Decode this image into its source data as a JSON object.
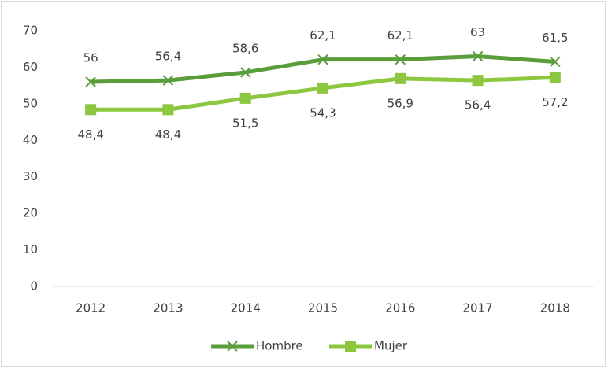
{
  "chart_data": {
    "type": "line",
    "categories": [
      "2012",
      "2013",
      "2014",
      "2015",
      "2016",
      "2017",
      "2018"
    ],
    "series": [
      {
        "name": "Hombre",
        "color": "#5a9e3c",
        "marker": "x",
        "values": [
          56,
          56.4,
          58.6,
          62.1,
          62.1,
          63,
          61.5
        ],
        "value_labels": [
          "56",
          "56,4",
          "58,6",
          "62,1",
          "62,1",
          "63",
          "61,5"
        ]
      },
      {
        "name": "Mujer",
        "color": "#8dc63f",
        "marker": "square",
        "values": [
          48.4,
          48.4,
          51.5,
          54.3,
          56.9,
          56.4,
          57.2
        ],
        "value_labels": [
          "48,4",
          "48,4",
          "51,5",
          "54,3",
          "56,9",
          "56,4",
          "57,2"
        ]
      }
    ],
    "ylim": [
      0,
      70
    ],
    "yticks": [
      0,
      10,
      20,
      30,
      40,
      50,
      60,
      70
    ],
    "grid": false,
    "legend": "bottom"
  }
}
